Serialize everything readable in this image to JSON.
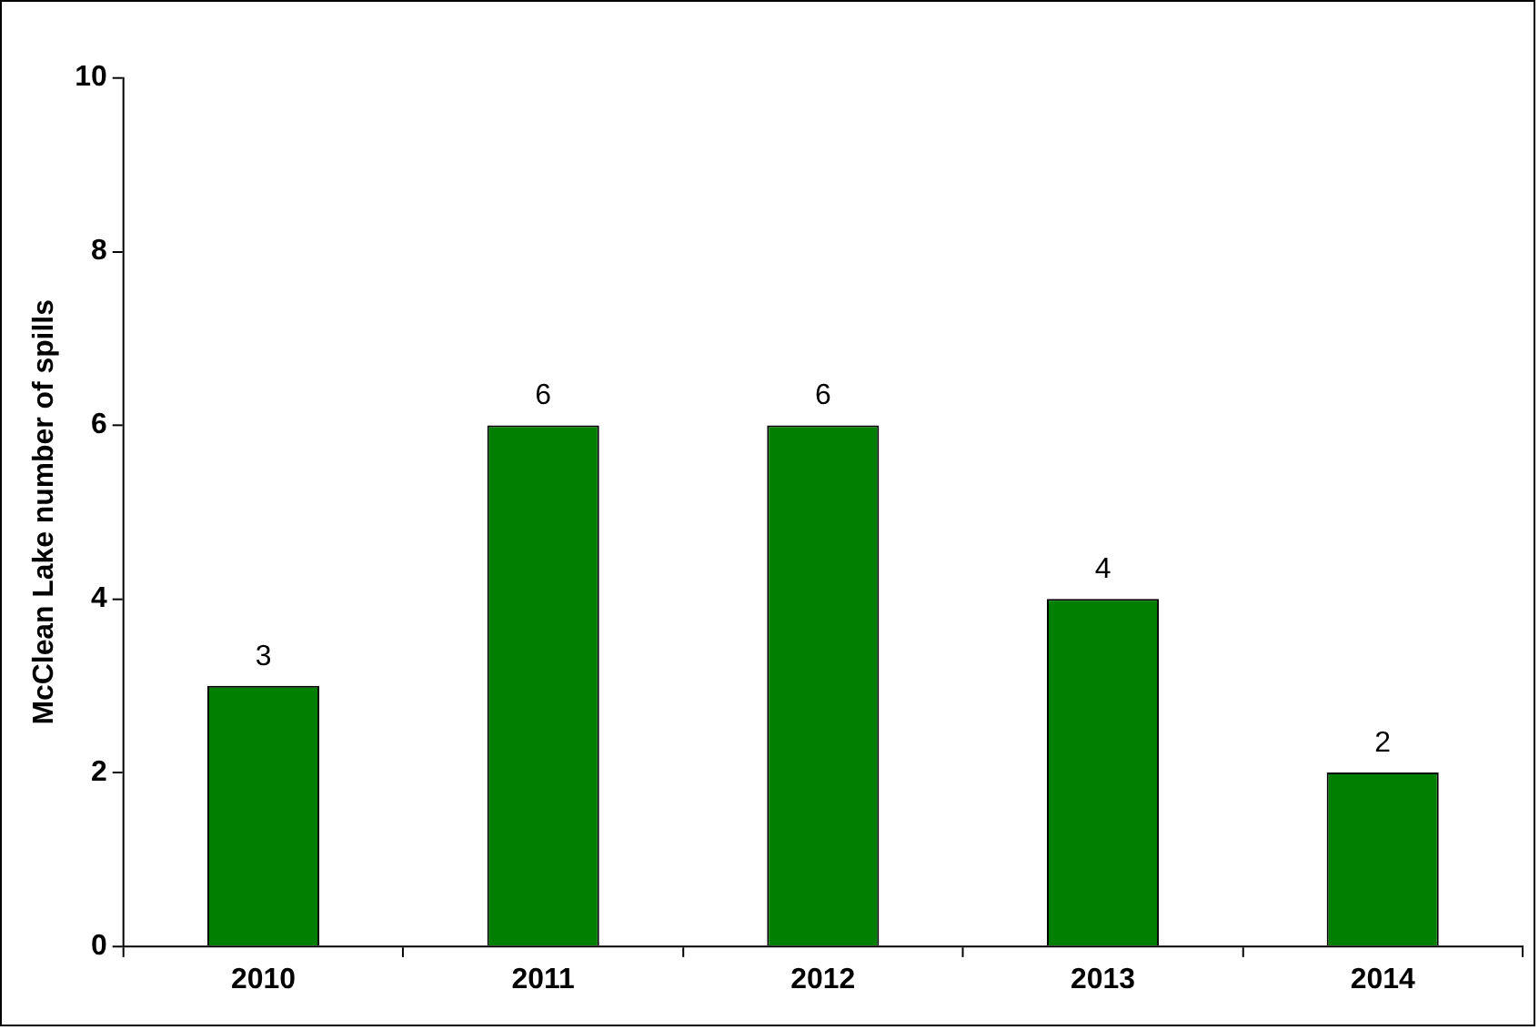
{
  "chart_data": {
    "type": "bar",
    "ylabel": "McClean Lake number of spills",
    "categories": [
      "2010",
      "2011",
      "2012",
      "2013",
      "2014"
    ],
    "values": [
      3,
      6,
      6,
      4,
      2
    ],
    "color": "#007f00",
    "ylim": [
      0,
      10
    ],
    "yticks": [
      0,
      2,
      4,
      6,
      8,
      10
    ],
    "grid": false,
    "legend": false,
    "data_labels": true
  }
}
